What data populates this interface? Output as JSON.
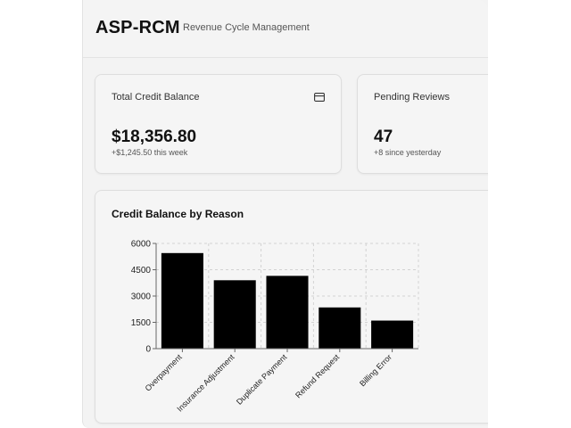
{
  "header": {
    "app_name": "ASP-RCM",
    "subtitle": "Revenue Cycle Management"
  },
  "cards": {
    "credit": {
      "label": "Total Credit Balance",
      "value": "$18,356.80",
      "sub": "+$1,245.50 this week",
      "icon": "credit-card-icon"
    },
    "pending": {
      "label": "Pending Reviews",
      "value": "47",
      "sub": "+8 since yesterday"
    }
  },
  "chart_panel": {
    "title": "Credit Balance by Reason"
  },
  "chart_data": {
    "type": "bar",
    "title": "Credit Balance by Reason",
    "categories": [
      "Overpayment",
      "Insurance Adjustment",
      "Duplicate Payment",
      "Refund Request",
      "Billing Error"
    ],
    "values": [
      5450,
      3900,
      4150,
      2350,
      1600
    ],
    "ylim": [
      0,
      6000
    ],
    "yticks": [
      0,
      1500,
      3000,
      4500,
      6000
    ],
    "grid": true,
    "bar_color": "#000000"
  }
}
